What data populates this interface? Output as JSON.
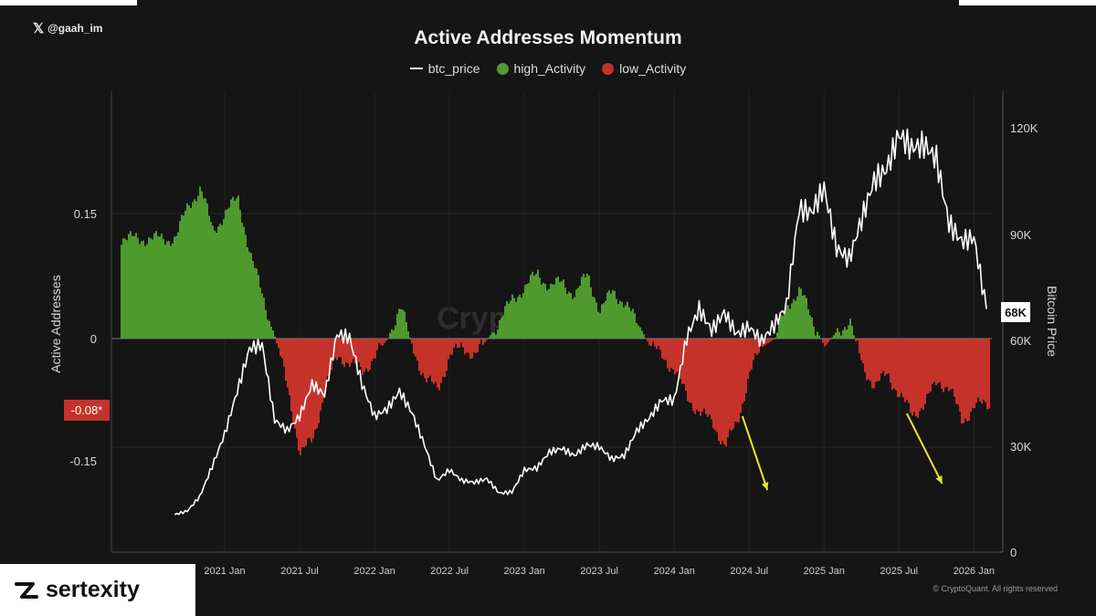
{
  "header": {
    "handle": "@gaah_im",
    "x_logo": "𝕏"
  },
  "brand": {
    "name": "sertexity"
  },
  "copyright": "© CryptoQuant. All rights reserved",
  "watermark": "Crypto",
  "colors": {
    "background": "#151515",
    "high": "#4f9a2d",
    "low": "#c5322a",
    "price": "#ffffff",
    "arrows": "#e6e62a"
  },
  "chart_data": {
    "type": "area",
    "title": "Active Addresses Momentum",
    "legend": [
      "btc_price",
      "high_Activity",
      "low_Activity"
    ],
    "legend_placement": "top-center",
    "ylabel": "Active Addresses",
    "y2label": "Bitcoin Price",
    "ylim": [
      -0.26,
      0.19
    ],
    "y_ticks": [
      "0.15",
      "0",
      "-0.15"
    ],
    "y2lim": [
      0,
      128000
    ],
    "y2_ticks": [
      "120K",
      "90K",
      "60K",
      "30K",
      "0"
    ],
    "x_ticks": [
      "2021 Jan",
      "2021 Jul",
      "2022 Jan",
      "2022 Jul",
      "2023 Jan",
      "2023 Jul",
      "2024 Jan",
      "2024 Jul",
      "2025 Jan",
      "2025 Jul",
      "2026 Jan"
    ],
    "current_value_marker": "-0.08*",
    "current_price_marker": "68K",
    "grid": true,
    "momentum": {
      "x": [
        "2020-09-01",
        "2020-10-01",
        "2020-11-01",
        "2020-12-01",
        "2021-01-01",
        "2021-02-01",
        "2021-03-01",
        "2021-04-01",
        "2021-05-01",
        "2021-06-01",
        "2021-07-01",
        "2021-08-01",
        "2021-09-01",
        "2021-10-01",
        "2021-11-01",
        "2021-12-01",
        "2022-01-01",
        "2022-02-01",
        "2022-03-01",
        "2022-04-01",
        "2022-05-01",
        "2022-06-01",
        "2022-07-01",
        "2022-08-01",
        "2022-09-01",
        "2022-10-01",
        "2022-11-01",
        "2022-12-01",
        "2023-01-01",
        "2023-02-01",
        "2023-03-01",
        "2023-04-01",
        "2023-05-01",
        "2023-06-01",
        "2023-07-01",
        "2023-08-01",
        "2023-09-01",
        "2023-10-01",
        "2023-11-01",
        "2023-12-01",
        "2024-01-01",
        "2024-02-01",
        "2024-03-01",
        "2024-04-01",
        "2024-05-01",
        "2024-06-01",
        "2024-07-01",
        "2024-08-01",
        "2024-09-01",
        "2024-10-01",
        "2024-11-01",
        "2024-12-01",
        "2025-01-01",
        "2025-02-01",
        "2025-03-01",
        "2025-04-01",
        "2025-05-01",
        "2025-06-01",
        "2025-07-01",
        "2025-08-01",
        "2025-09-01",
        "2025-10-01",
        "2025-11-01",
        "2025-12-01",
        "2026-01-01",
        "2026-02-01"
      ],
      "values": [
        0.12,
        0.16,
        0.18,
        0.13,
        0.15,
        0.17,
        0.1,
        0.05,
        0.0,
        -0.06,
        -0.14,
        -0.12,
        -0.06,
        -0.02,
        -0.03,
        -0.04,
        -0.02,
        0.0,
        0.04,
        -0.01,
        -0.05,
        -0.06,
        -0.02,
        -0.01,
        -0.02,
        0.0,
        0.02,
        0.05,
        0.06,
        0.08,
        0.06,
        0.07,
        0.05,
        0.08,
        0.03,
        0.06,
        0.04,
        0.02,
        -0.01,
        -0.02,
        -0.04,
        -0.07,
        -0.09,
        -0.1,
        -0.13,
        -0.1,
        -0.04,
        -0.01,
        0.0,
        0.04,
        0.06,
        0.02,
        -0.01,
        0.01,
        0.02,
        -0.03,
        -0.06,
        -0.04,
        -0.07,
        -0.09,
        -0.08,
        -0.05,
        -0.06,
        -0.1,
        -0.08,
        -0.08
      ]
    },
    "btc_price": {
      "x": [
        "2020-09-01",
        "2020-10-01",
        "2020-11-01",
        "2020-12-01",
        "2021-01-01",
        "2021-02-01",
        "2021-03-01",
        "2021-04-01",
        "2021-05-01",
        "2021-06-01",
        "2021-07-01",
        "2021-08-01",
        "2021-09-01",
        "2021-10-01",
        "2021-11-01",
        "2021-12-01",
        "2022-01-01",
        "2022-02-01",
        "2022-03-01",
        "2022-04-01",
        "2022-05-01",
        "2022-06-01",
        "2022-07-01",
        "2022-08-01",
        "2022-09-01",
        "2022-10-01",
        "2022-11-01",
        "2022-12-01",
        "2023-01-01",
        "2023-02-01",
        "2023-03-01",
        "2023-04-01",
        "2023-05-01",
        "2023-06-01",
        "2023-07-01",
        "2023-08-01",
        "2023-09-01",
        "2023-10-01",
        "2023-11-01",
        "2023-12-01",
        "2024-01-01",
        "2024-02-01",
        "2024-03-01",
        "2024-04-01",
        "2024-05-01",
        "2024-06-01",
        "2024-07-01",
        "2024-08-01",
        "2024-09-01",
        "2024-10-01",
        "2024-11-01",
        "2024-12-01",
        "2025-01-01",
        "2025-02-01",
        "2025-03-01",
        "2025-04-01",
        "2025-05-01",
        "2025-06-01",
        "2025-07-01",
        "2025-08-01",
        "2025-09-01",
        "2025-10-01",
        "2025-11-01",
        "2025-12-01",
        "2026-01-01",
        "2026-02-01"
      ],
      "values": [
        10500,
        11500,
        15500,
        24000,
        33000,
        45000,
        57000,
        58000,
        37000,
        34000,
        38000,
        47000,
        44000,
        61000,
        60000,
        47000,
        38000,
        40000,
        45000,
        39000,
        30000,
        20000,
        23000,
        20000,
        19500,
        20500,
        16500,
        16800,
        23000,
        23500,
        28000,
        29000,
        27000,
        30000,
        29500,
        26000,
        27000,
        34000,
        37500,
        42500,
        42500,
        60000,
        68000,
        62000,
        67000,
        61000,
        63000,
        59000,
        63500,
        69000,
        96000,
        95000,
        102000,
        85000,
        82000,
        93000,
        104000,
        107000,
        117000,
        113000,
        114000,
        110000,
        92000,
        87000,
        88000,
        68000
      ]
    },
    "annotations": [
      {
        "type": "arrow",
        "from": "2024-06-15",
        "to": "2024-08-15",
        "note": ""
      },
      {
        "type": "arrow",
        "from": "2025-07-20",
        "to": "2025-10-15",
        "note": ""
      }
    ]
  }
}
